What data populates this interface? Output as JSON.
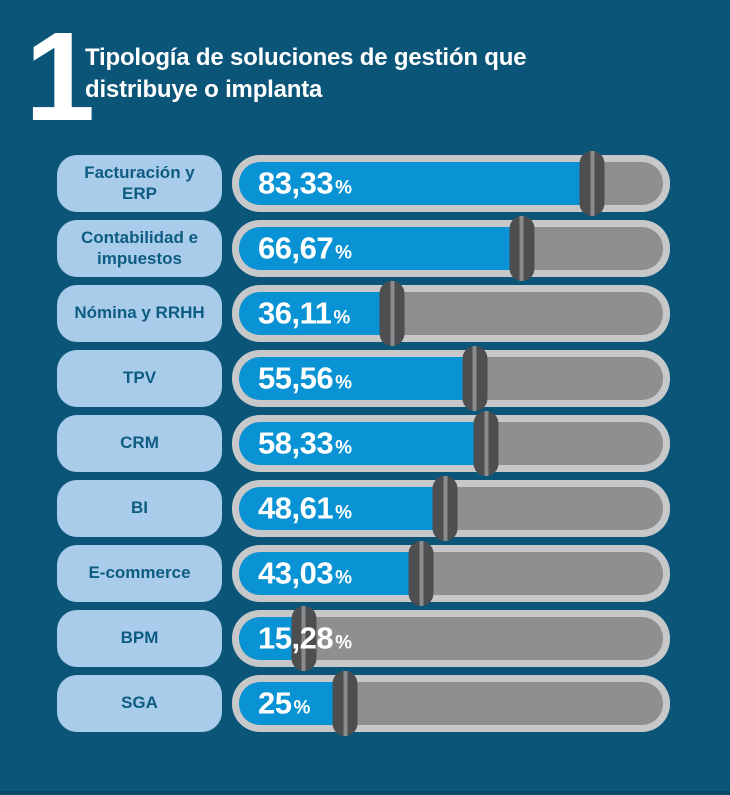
{
  "page": {
    "background": "#0A5578",
    "bottom_edge_color": "#07486A"
  },
  "header": {
    "section_number": "1",
    "title_line1": "Tipología de soluciones de gestión que",
    "title_line2": "distribuye o implanta"
  },
  "chart_data": {
    "type": "bar",
    "orientation": "horizontal",
    "title": "Tipología de soluciones de gestión que distribuye o implanta",
    "unit": "%",
    "xlim": [
      0,
      100
    ],
    "categories": [
      "Facturación y ERP",
      "Contabilidad e impuestos",
      "Nómina y RRHH",
      "TPV",
      "CRM",
      "BI",
      "E-commerce",
      "BPM",
      "SGA"
    ],
    "values": [
      83.33,
      66.67,
      36.11,
      55.56,
      58.33,
      48.61,
      43.03,
      15.28,
      25
    ],
    "rows": [
      {
        "label": "Facturación y ERP",
        "value": 83.33,
        "display": "83,33"
      },
      {
        "label": "Contabilidad e impuestos",
        "value": 66.67,
        "display": "66,67"
      },
      {
        "label": "Nómina y RRHH",
        "value": 36.11,
        "display": "36,11"
      },
      {
        "label": "TPV",
        "value": 55.56,
        "display": "55,56"
      },
      {
        "label": "CRM",
        "value": 58.33,
        "display": "58,33"
      },
      {
        "label": "BI",
        "value": 48.61,
        "display": "48,61"
      },
      {
        "label": "E-commerce",
        "value": 43.03,
        "display": "43,03"
      },
      {
        "label": "BPM",
        "value": 15.28,
        "display": "15,28"
      },
      {
        "label": "SGA",
        "value": 25,
        "display": "25"
      }
    ],
    "legend": null,
    "grid": false,
    "colors": {
      "background": "#0A5578",
      "bar_fill": "#0A93D4",
      "bar_track": "#8E8F91",
      "bar_frame": "#C7C8CA",
      "handle": "#4D4E50",
      "handle_slit": "#8A8B8D",
      "label_pill_bg": "#A9CCEA",
      "label_pill_text": "#0E5C82",
      "value_text": "#FFFFFF",
      "title_text": "#FFFFFF"
    }
  }
}
